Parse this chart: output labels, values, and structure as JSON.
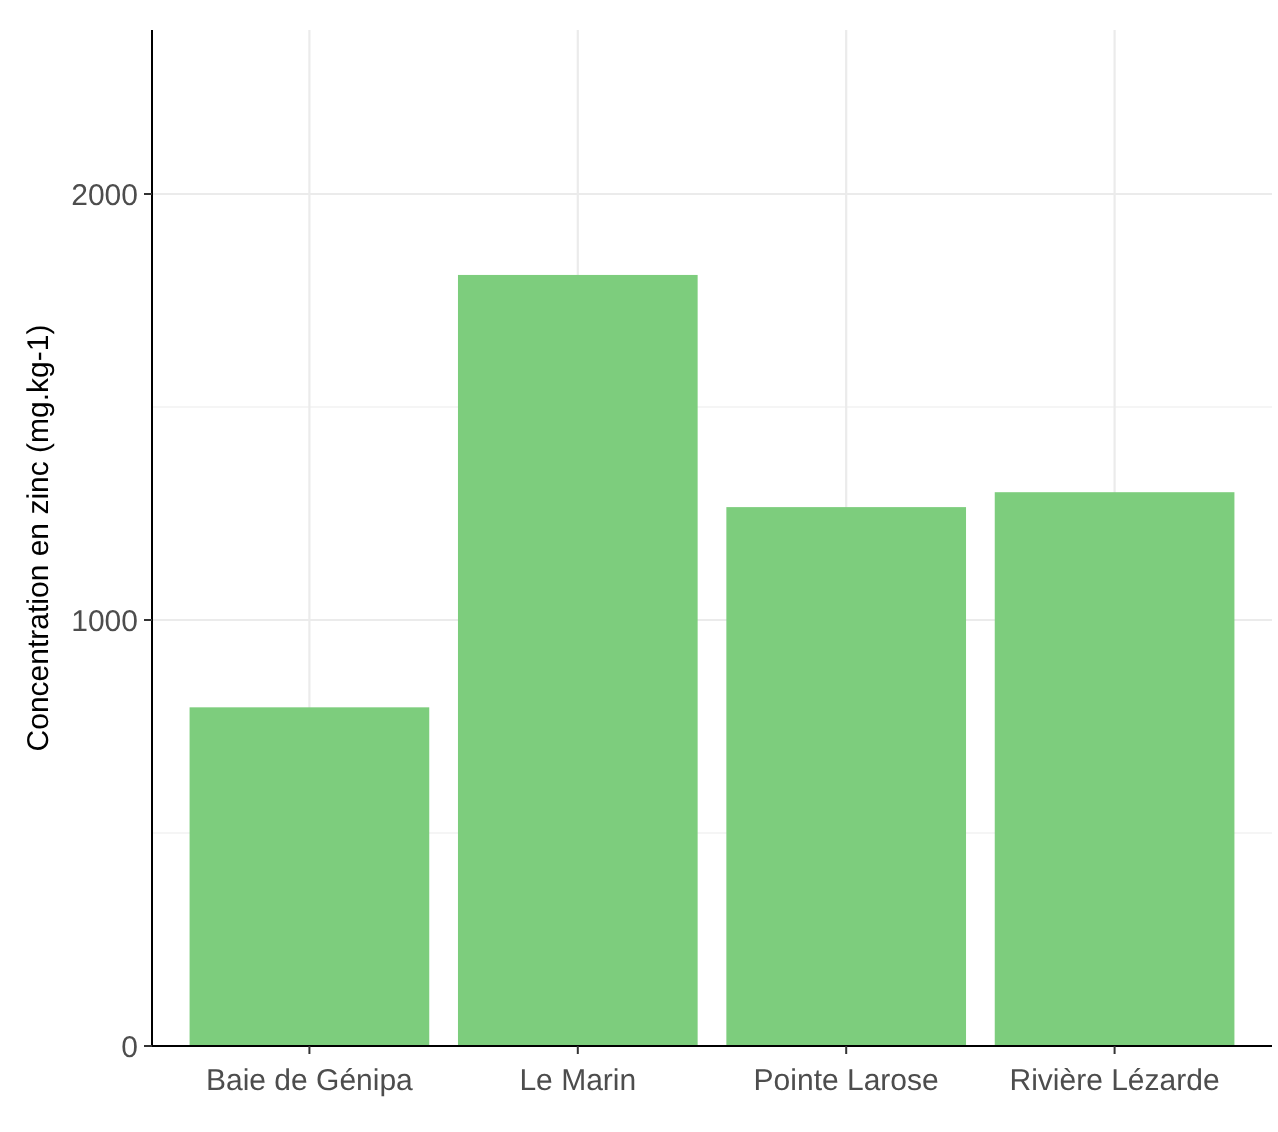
{
  "chart_data": {
    "type": "bar",
    "ylabel": "Concentration en zinc (mg.kg-1)",
    "categories": [
      "Baie de Génipa",
      "Le Marin",
      "Pointe Larose",
      "Rivière Lézarde"
    ],
    "values": [
      795,
      1810,
      1265,
      1300
    ],
    "color": "#7dcd7d",
    "ylim": [
      0,
      2385
    ],
    "yticks": [
      0,
      {
        "value": 500,
        "label": null
      },
      1000,
      {
        "value": 1500,
        "label": null
      },
      2000
    ],
    "grid": true
  }
}
